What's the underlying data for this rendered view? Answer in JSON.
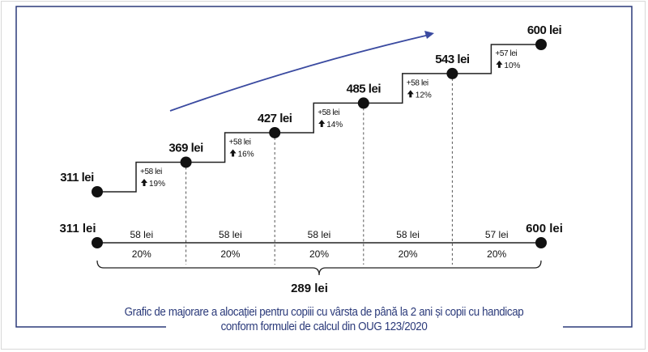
{
  "chart_data": {
    "type": "line",
    "title": "Grafic de majorare a alocației pentru copiii cu vârsta de până la 2 ani și copii cu handicap",
    "subtitle": "conform formulei de calcul din OUG 123/2020",
    "steps": [
      {
        "value_label": "311 lei",
        "value": 311
      },
      {
        "value_label": "369 lei",
        "value": 369,
        "increase_label": "+58 lei",
        "percent_label": "19%"
      },
      {
        "value_label": "427 lei",
        "value": 427,
        "increase_label": "+58 lei",
        "percent_label": "16%"
      },
      {
        "value_label": "485 lei",
        "value": 485,
        "increase_label": "+58 lei",
        "percent_label": "14%"
      },
      {
        "value_label": "543 lei",
        "value": 543,
        "increase_label": "+58 lei",
        "percent_label": "12%"
      },
      {
        "value_label": "600 lei",
        "value": 600,
        "increase_label": "+57 lei",
        "percent_label": "10%"
      }
    ],
    "timeline": {
      "start_label": "311 lei",
      "end_label": "600 lei",
      "segments": [
        {
          "amount": "58 lei",
          "share": "20%"
        },
        {
          "amount": "58 lei",
          "share": "20%"
        },
        {
          "amount": "58 lei",
          "share": "20%"
        },
        {
          "amount": "58 lei",
          "share": "20%"
        },
        {
          "amount": "57 lei",
          "share": "20%"
        }
      ],
      "total_label": "289 lei"
    },
    "colors": {
      "frame": "#2b3a7a",
      "arrow": "#3a4aa0",
      "line": "#222222"
    }
  }
}
